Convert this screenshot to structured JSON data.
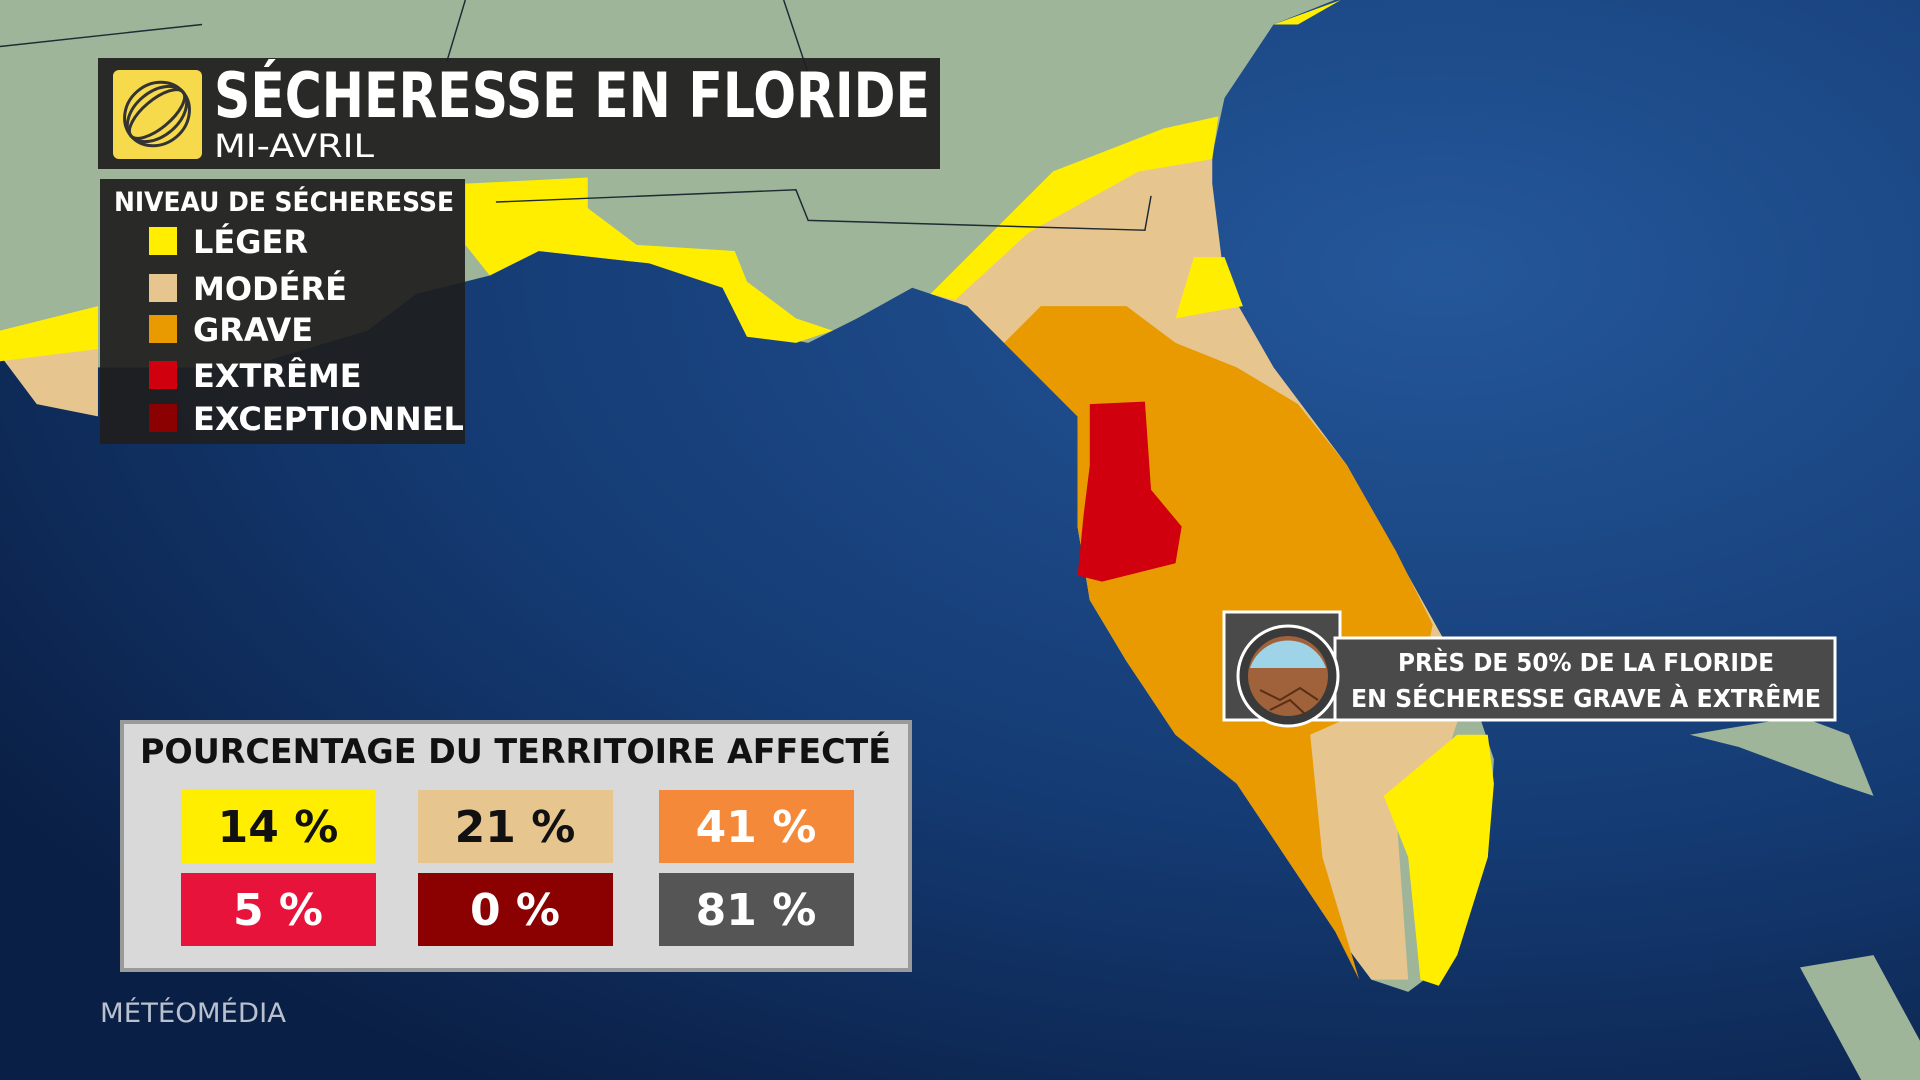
{
  "header": {
    "title": "SÉCHERESSE EN FLORIDE",
    "subtitle": "MI-AVRIL"
  },
  "legend": {
    "title": "NIVEAU DE SÉCHERESSE",
    "items": [
      "LÉGER",
      "MODÉRÉ",
      "GRAVE",
      "EXTRÊME",
      "EXCEPTIONNEL"
    ]
  },
  "panel": {
    "title": "POURCENTAGE DU TERRITOIRE AFFECTÉ",
    "cells": [
      [
        "14 %",
        "21 %",
        "41 %"
      ],
      [
        "5 %",
        "0 %",
        "81 %"
      ]
    ]
  },
  "callout": {
    "lines": [
      "PRÈS DE 50% DE LA FLORIDE",
      "EN SÉCHERESSE GRAVE À EXTRÊME"
    ]
  },
  "footer": {
    "brand": "MÉTÉOMÉDIA"
  }
}
